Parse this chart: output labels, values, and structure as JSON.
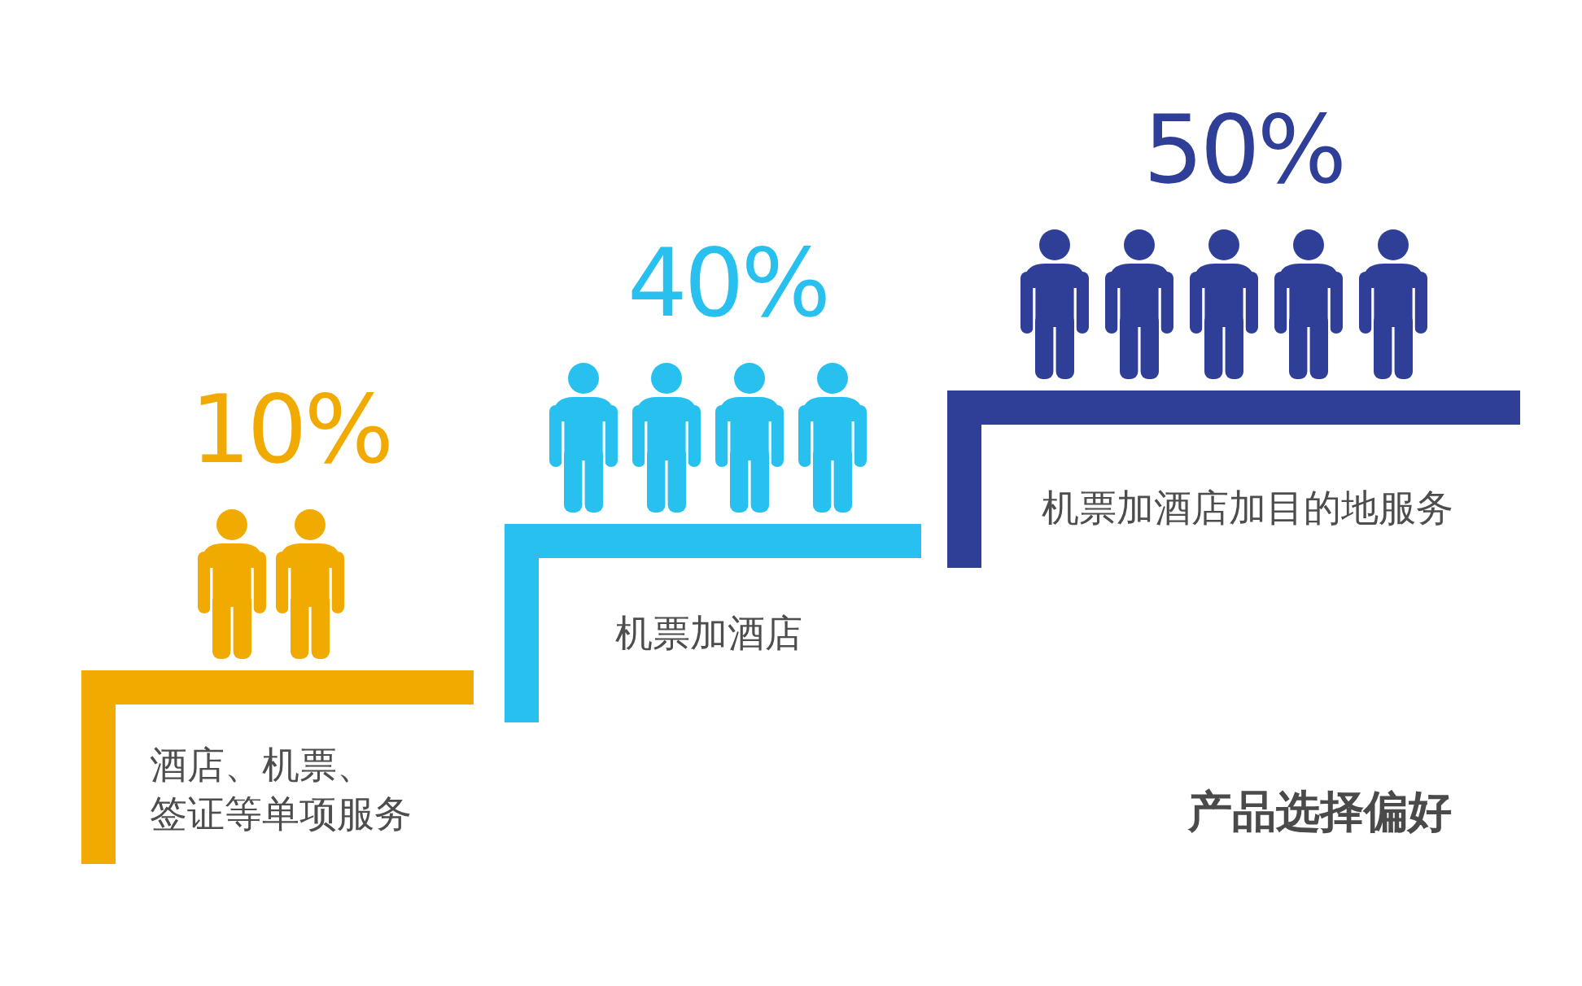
{
  "chart_data": {
    "type": "other",
    "title": "产品选择偏好",
    "categories": [
      "酒店、机票、签证等单项服务",
      "机票加酒店",
      "机票加酒店加目的地服务"
    ],
    "values": [
      10,
      40,
      50
    ],
    "value_labels": [
      "10%",
      "40%",
      "50%"
    ],
    "colors": [
      "#f1aa00",
      "#27c0ef",
      "#2f3f97"
    ]
  }
}
